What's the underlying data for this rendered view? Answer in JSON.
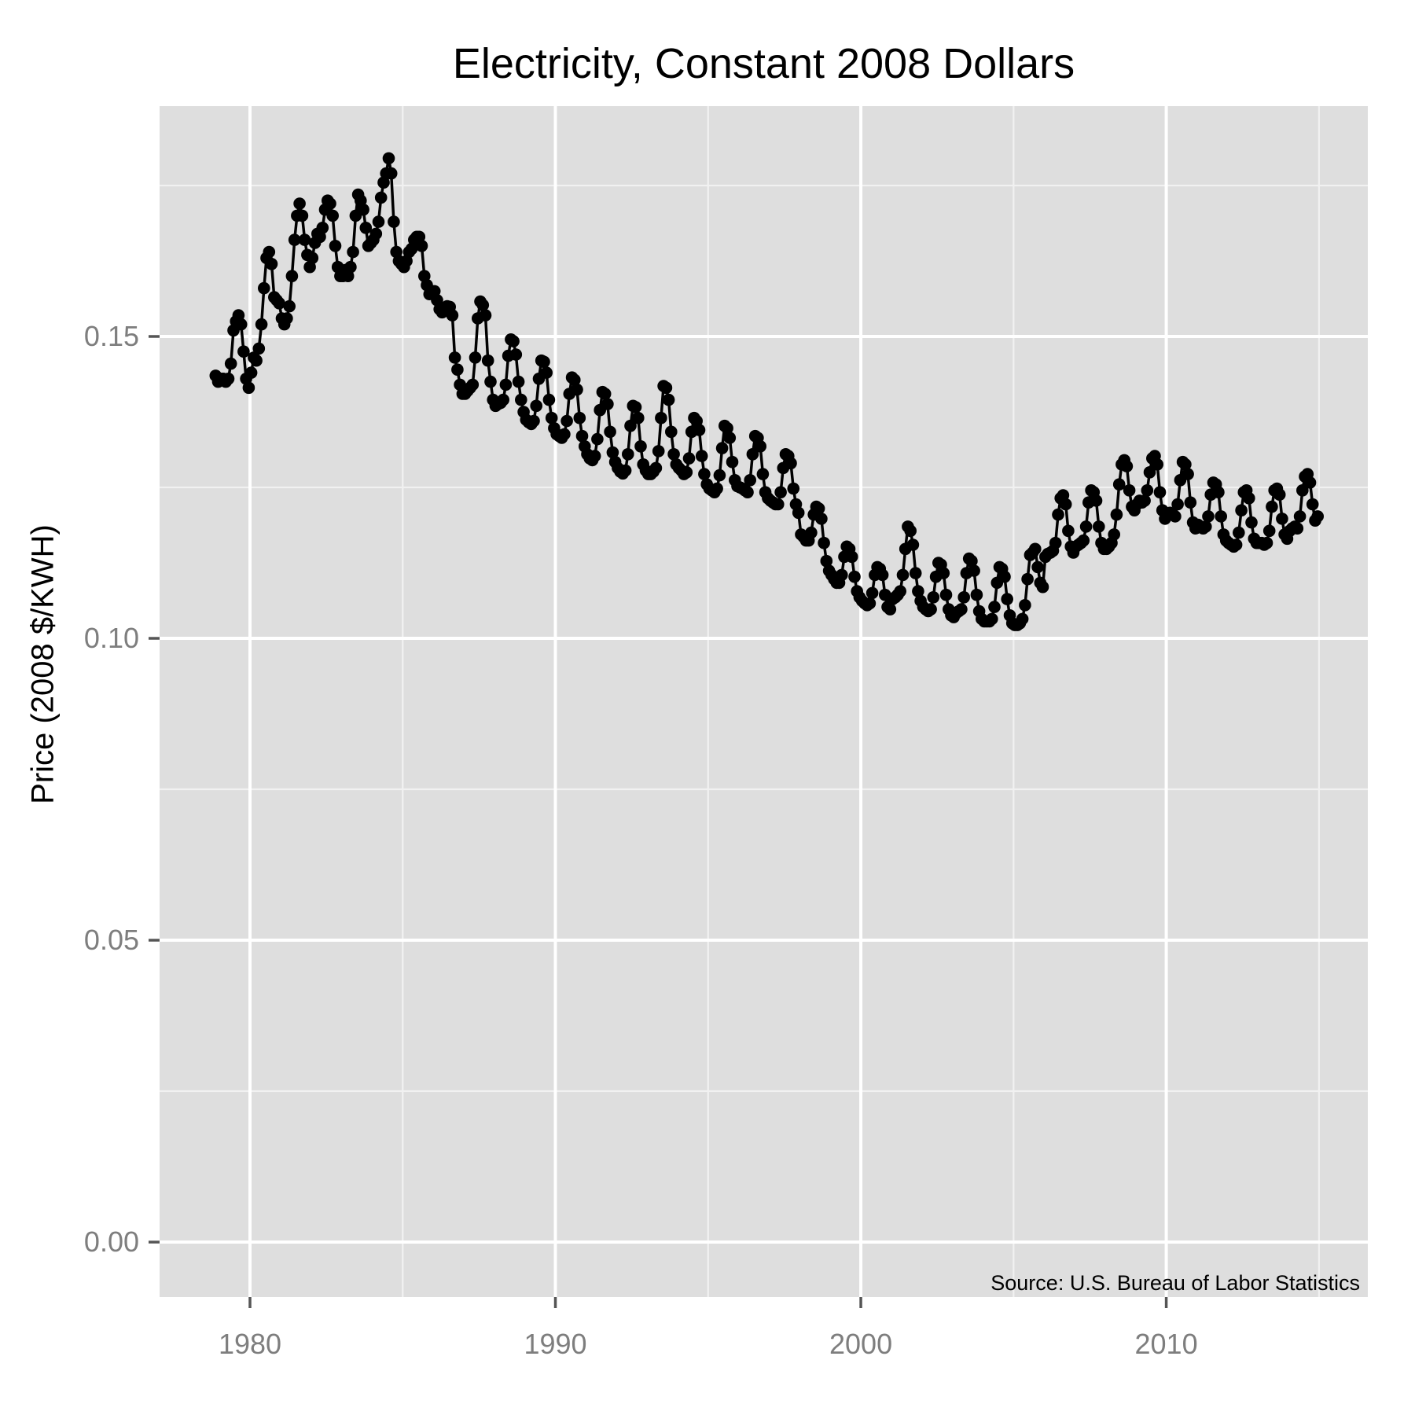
{
  "title": "Electricity, Constant 2008 Dollars",
  "y_axis": {
    "label": "Price (2008 $/KWH)"
  },
  "x_axis": {
    "label": ""
  },
  "source_note": "Source:  U.S. Bureau of Labor Statistics",
  "colors": {
    "panel_background": "#dedede",
    "outer_background": "#ffffff",
    "grid_major": "#ffffff",
    "grid_minor": "#f1f1f1",
    "point": "#000000",
    "line": "#000000",
    "axis_text": "#7e7e7e",
    "tick_mark": "#555555",
    "title_text": "#000000"
  },
  "chart_data": {
    "type": "line",
    "mark": "point+line",
    "title": "Electricity, Constant 2008 Dollars",
    "xlabel": "",
    "ylabel": "Price (2008 $/KWH)",
    "source": "Source:  U.S. Bureau of Labor Statistics",
    "frequency": "monthly",
    "start_label": "Nov 1978",
    "end_label": "Dec 2014",
    "x_start_decimal_year": 1978.875,
    "x_interval_years": 0.0833333,
    "xlim": [
      1977.04,
      2016.6
    ],
    "ylim": [
      -0.00911,
      0.18815
    ],
    "x_ticks": [
      {
        "v": 1980,
        "label": "1980"
      },
      {
        "v": 1990,
        "label": "1990"
      },
      {
        "v": 2000,
        "label": "2000"
      },
      {
        "v": 2010,
        "label": "2010"
      }
    ],
    "x_minor_ticks": [
      1985,
      1995,
      2005,
      2015
    ],
    "y_ticks": [
      {
        "v": 0.0,
        "label": "0.00"
      },
      {
        "v": 0.05,
        "label": "0.05"
      },
      {
        "v": 0.1,
        "label": "0.10"
      },
      {
        "v": 0.15,
        "label": "0.15"
      }
    ],
    "y_minor_ticks": [
      0.025,
      0.075,
      0.125,
      0.175
    ],
    "grid": true,
    "legend": "none",
    "values": [
      0.1435,
      0.1425,
      0.143,
      0.143,
      0.1425,
      0.143,
      0.1455,
      0.151,
      0.1525,
      0.1535,
      0.152,
      0.1475,
      0.143,
      0.1415,
      0.144,
      0.1465,
      0.146,
      0.148,
      0.152,
      0.158,
      0.163,
      0.164,
      0.162,
      0.1565,
      0.156,
      0.1555,
      0.153,
      0.152,
      0.153,
      0.155,
      0.16,
      0.166,
      0.17,
      0.172,
      0.17,
      0.166,
      0.1635,
      0.1615,
      0.163,
      0.1655,
      0.167,
      0.1665,
      0.168,
      0.171,
      0.1725,
      0.172,
      0.17,
      0.165,
      0.1615,
      0.16,
      0.16,
      0.161,
      0.16,
      0.1615,
      0.164,
      0.17,
      0.1735,
      0.1725,
      0.171,
      0.168,
      0.165,
      0.1655,
      0.166,
      0.167,
      0.169,
      0.173,
      0.1755,
      0.177,
      0.1795,
      0.177,
      0.169,
      0.164,
      0.1625,
      0.162,
      0.1615,
      0.1625,
      0.164,
      0.1645,
      0.166,
      0.1665,
      0.1665,
      0.165,
      0.16,
      0.1585,
      0.157,
      0.1575,
      0.1575,
      0.156,
      0.1545,
      0.154,
      0.1545,
      0.155,
      0.1549,
      0.1535,
      0.1465,
      0.1445,
      0.142,
      0.1405,
      0.1405,
      0.141,
      0.1415,
      0.142,
      0.1465,
      0.153,
      0.1558,
      0.1552,
      0.1535,
      0.146,
      0.1425,
      0.1395,
      0.1385,
      0.1388,
      0.139,
      0.1395,
      0.142,
      0.1468,
      0.1495,
      0.1492,
      0.147,
      0.1425,
      0.1395,
      0.1375,
      0.1362,
      0.1358,
      0.1355,
      0.136,
      0.1385,
      0.143,
      0.146,
      0.1458,
      0.144,
      0.1395,
      0.1365,
      0.1348,
      0.1338,
      0.1335,
      0.1332,
      0.1338,
      0.136,
      0.1405,
      0.1432,
      0.1428,
      0.1412,
      0.1365,
      0.1335,
      0.1318,
      0.1305,
      0.1298,
      0.1295,
      0.1302,
      0.133,
      0.1378,
      0.1408,
      0.1405,
      0.1388,
      0.1342,
      0.1308,
      0.1292,
      0.1282,
      0.1276,
      0.1273,
      0.1278,
      0.1305,
      0.1352,
      0.1385,
      0.1383,
      0.1365,
      0.1318,
      0.1288,
      0.1278,
      0.1272,
      0.1272,
      0.1276,
      0.1282,
      0.131,
      0.1365,
      0.1418,
      0.1415,
      0.1395,
      0.1342,
      0.1305,
      0.1288,
      0.1282,
      0.1278,
      0.1272,
      0.1275,
      0.1298,
      0.1342,
      0.1365,
      0.136,
      0.1345,
      0.1302,
      0.1272,
      0.1255,
      0.1248,
      0.1245,
      0.1242,
      0.1248,
      0.127,
      0.1315,
      0.1352,
      0.1348,
      0.1332,
      0.1292,
      0.1262,
      0.1252,
      0.125,
      0.1248,
      0.1245,
      0.1242,
      0.1262,
      0.1305,
      0.1335,
      0.1332,
      0.1318,
      0.1272,
      0.1242,
      0.1232,
      0.1228,
      0.1225,
      0.1222,
      0.1222,
      0.1242,
      0.1282,
      0.1305,
      0.1302,
      0.129,
      0.1248,
      0.1222,
      0.1208,
      0.1172,
      0.1168,
      0.1162,
      0.1162,
      0.1175,
      0.1205,
      0.1218,
      0.1215,
      0.1198,
      0.1158,
      0.1128,
      0.1112,
      0.1105,
      0.1098,
      0.1092,
      0.1092,
      0.1105,
      0.1135,
      0.1152,
      0.1148,
      0.1135,
      0.1102,
      0.1078,
      0.1068,
      0.1062,
      0.1058,
      0.1055,
      0.1058,
      0.1075,
      0.1105,
      0.1118,
      0.1115,
      0.1105,
      0.1072,
      0.1052,
      0.1048,
      0.1065,
      0.1068,
      0.1072,
      0.1078,
      0.1105,
      0.1148,
      0.1185,
      0.1178,
      0.1155,
      0.1108,
      0.1078,
      0.1062,
      0.1052,
      0.1048,
      0.1045,
      0.1048,
      0.1068,
      0.1102,
      0.1125,
      0.1122,
      0.1108,
      0.1072,
      0.1048,
      0.1038,
      0.1035,
      0.1042,
      0.1045,
      0.1048,
      0.1068,
      0.1108,
      0.1132,
      0.1128,
      0.1112,
      0.1072,
      0.1045,
      0.1032,
      0.1028,
      0.1028,
      0.1028,
      0.1032,
      0.1052,
      0.1092,
      0.1118,
      0.1115,
      0.1102,
      0.1065,
      0.1038,
      0.1025,
      0.1022,
      0.1022,
      0.1025,
      0.1032,
      0.1055,
      0.1098,
      0.1138,
      0.1142,
      0.1148,
      0.1118,
      0.1092,
      0.1085,
      0.1135,
      0.114,
      0.1142,
      0.1145,
      0.1158,
      0.1205,
      0.1232,
      0.1237,
      0.1222,
      0.1178,
      0.1152,
      0.1142,
      0.1152,
      0.1155,
      0.1158,
      0.1162,
      0.1185,
      0.1225,
      0.1245,
      0.1242,
      0.1228,
      0.1185,
      0.1158,
      0.1148,
      0.1148,
      0.1152,
      0.1158,
      0.1172,
      0.1205,
      0.1255,
      0.1288,
      0.1295,
      0.1285,
      0.1245,
      0.1218,
      0.1212,
      0.1222,
      0.1228,
      0.1225,
      0.1228,
      0.1245,
      0.1275,
      0.1298,
      0.1302,
      0.1288,
      0.1242,
      0.1212,
      0.1198,
      0.1205,
      0.1208,
      0.1205,
      0.1202,
      0.1222,
      0.1262,
      0.1292,
      0.1288,
      0.1272,
      0.1225,
      0.1192,
      0.1182,
      0.1188,
      0.1185,
      0.1182,
      0.1185,
      0.1202,
      0.1238,
      0.1258,
      0.1255,
      0.1242,
      0.1202,
      0.1172,
      0.1162,
      0.1158,
      0.1155,
      0.1152,
      0.1155,
      0.1175,
      0.1212,
      0.1242,
      0.1245,
      0.1232,
      0.1192,
      0.1165,
      0.1158,
      0.1158,
      0.1158,
      0.1155,
      0.1158,
      0.1178,
      0.1218,
      0.1245,
      0.1248,
      0.1238,
      0.1198,
      0.1172,
      0.1165,
      0.1178,
      0.1182,
      0.1185,
      0.1182,
      0.1202,
      0.1245,
      0.1268,
      0.1272,
      0.1258,
      0.1222,
      0.1195,
      0.1202
    ]
  }
}
